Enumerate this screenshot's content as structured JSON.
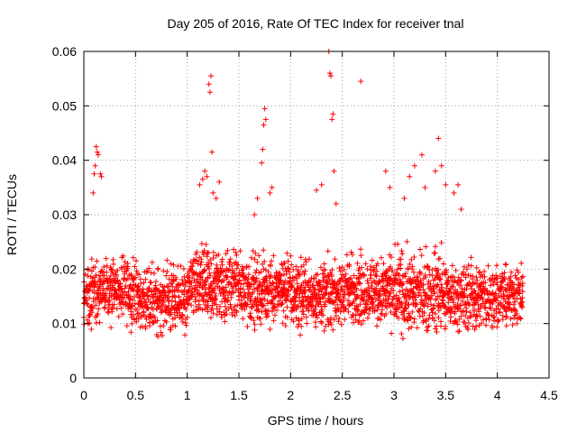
{
  "chart_data": {
    "type": "scatter",
    "title": "Day 205 of 2016, Rate Of TEC Index for receiver tnal",
    "xlabel": "GPS time / hours",
    "ylabel": "ROTI / TECUs",
    "xlim": [
      0,
      4.5
    ],
    "ylim": [
      0,
      0.06
    ],
    "grid": true,
    "marker": "+",
    "color": "#ff0000",
    "x_ticks": [
      "0",
      "0.5",
      "1",
      "1.5",
      "2",
      "2.5",
      "3",
      "3.5",
      "4",
      "4.5"
    ],
    "y_ticks": [
      "0",
      "0.01",
      "0.02",
      "0.03",
      "0.04",
      "0.05",
      "0.06"
    ],
    "x_tick_values": [
      0,
      0.5,
      1,
      1.5,
      2,
      2.5,
      3,
      3.5,
      4,
      4.5
    ],
    "y_tick_values": [
      0,
      0.01,
      0.02,
      0.03,
      0.04,
      0.05,
      0.06
    ],
    "baseline": {
      "x_end": 4.25,
      "step": 0.0042,
      "segments": [
        {
          "x0": 0.0,
          "x1": 0.15,
          "lo": 0.0065,
          "hi": 0.0245
        },
        {
          "x0": 0.15,
          "x1": 0.5,
          "lo": 0.008,
          "hi": 0.024
        },
        {
          "x0": 0.5,
          "x1": 1.0,
          "lo": 0.0055,
          "hi": 0.023
        },
        {
          "x0": 1.0,
          "x1": 1.5,
          "lo": 0.008,
          "hi": 0.026
        },
        {
          "x0": 1.5,
          "x1": 2.0,
          "lo": 0.0075,
          "hi": 0.025
        },
        {
          "x0": 2.0,
          "x1": 2.5,
          "lo": 0.0065,
          "hi": 0.024
        },
        {
          "x0": 2.5,
          "x1": 3.0,
          "lo": 0.0075,
          "hi": 0.025
        },
        {
          "x0": 3.0,
          "x1": 3.5,
          "lo": 0.005,
          "hi": 0.026
        },
        {
          "x0": 3.5,
          "x1": 4.0,
          "lo": 0.006,
          "hi": 0.024
        },
        {
          "x0": 4.0,
          "x1": 4.25,
          "lo": 0.008,
          "hi": 0.022
        }
      ]
    },
    "outliers": [
      [
        0.09,
        0.034
      ],
      [
        0.1,
        0.0375
      ],
      [
        0.11,
        0.039
      ],
      [
        0.12,
        0.0425
      ],
      [
        0.13,
        0.0415
      ],
      [
        0.14,
        0.041
      ],
      [
        0.16,
        0.0375
      ],
      [
        0.17,
        0.037
      ],
      [
        1.12,
        0.0355
      ],
      [
        1.15,
        0.0365
      ],
      [
        1.17,
        0.038
      ],
      [
        1.19,
        0.037
      ],
      [
        1.21,
        0.054
      ],
      [
        1.22,
        0.0525
      ],
      [
        1.23,
        0.0555
      ],
      [
        1.24,
        0.0415
      ],
      [
        1.25,
        0.034
      ],
      [
        1.28,
        0.033
      ],
      [
        1.31,
        0.036
      ],
      [
        1.65,
        0.03
      ],
      [
        1.68,
        0.033
      ],
      [
        1.72,
        0.0395
      ],
      [
        1.73,
        0.042
      ],
      [
        1.74,
        0.0465
      ],
      [
        1.75,
        0.0495
      ],
      [
        1.76,
        0.0475
      ],
      [
        1.8,
        0.034
      ],
      [
        1.82,
        0.035
      ],
      [
        2.25,
        0.0345
      ],
      [
        2.3,
        0.0355
      ],
      [
        2.37,
        0.06
      ],
      [
        2.38,
        0.056
      ],
      [
        2.39,
        0.0555
      ],
      [
        2.4,
        0.0475
      ],
      [
        2.41,
        0.0485
      ],
      [
        2.42,
        0.038
      ],
      [
        2.44,
        0.032
      ],
      [
        2.68,
        0.0545
      ],
      [
        2.92,
        0.038
      ],
      [
        2.96,
        0.035
      ],
      [
        3.1,
        0.033
      ],
      [
        3.15,
        0.037
      ],
      [
        3.2,
        0.039
      ],
      [
        3.27,
        0.041
      ],
      [
        3.3,
        0.035
      ],
      [
        3.4,
        0.038
      ],
      [
        3.43,
        0.044
      ],
      [
        3.46,
        0.039
      ],
      [
        3.5,
        0.0355
      ],
      [
        3.58,
        0.034
      ],
      [
        3.62,
        0.0355
      ],
      [
        3.65,
        0.031
      ]
    ]
  }
}
